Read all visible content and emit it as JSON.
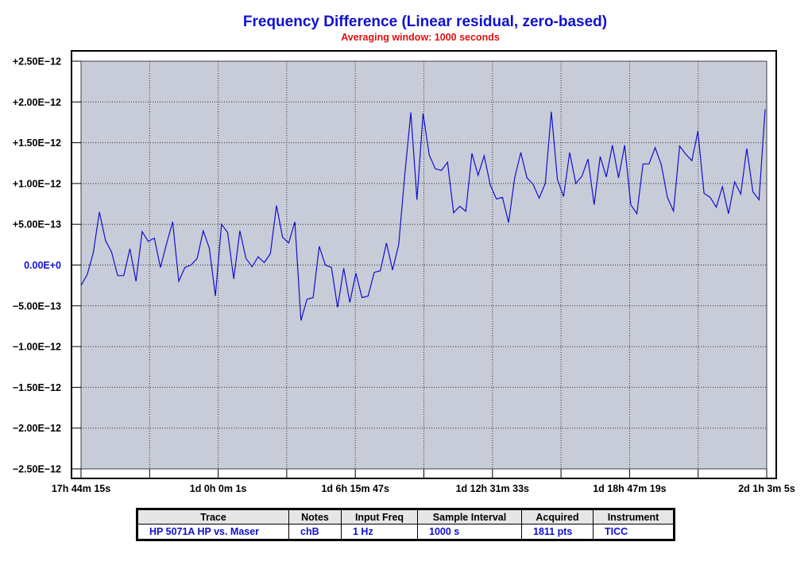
{
  "chart_data": {
    "type": "line",
    "title": "Frequency Difference (Linear residual, zero-based)",
    "subtitle": "Averaging window: 1000 seconds",
    "ylim": [
      -2.5e-12,
      2.5e-12
    ],
    "y_tick_labels": [
      "+2.50E−12",
      "+2.00E−12",
      "+1.50E−12",
      "+1.00E−12",
      "+5.00E−13",
      "0.00E+0",
      "−5.00E−13",
      "−1.00E−12",
      "−1.50E−12",
      "−2.00E−12",
      "−2.50E−12"
    ],
    "x_tick_labels": [
      "17h 44m 15s",
      "1d 0h 0m 1s",
      "1d 6h 15m 47s",
      "1d 12h 31m 33s",
      "1d 18h 47m 19s",
      "2d 1h 3m 5s"
    ],
    "grid": true,
    "colors": {
      "line": "#1010d0",
      "plot_bg": "#c8ccd8",
      "title": "#1010d0",
      "subtitle": "#e01010",
      "zero_label": "#1010d0"
    },
    "series": [
      {
        "values": [
          -0.25,
          -0.12,
          0.15,
          0.65,
          0.3,
          0.16,
          -0.13,
          -0.13,
          0.2,
          -0.2,
          0.41,
          0.29,
          0.33,
          -0.03,
          0.26,
          0.53,
          -0.2,
          -0.03,
          0.0,
          0.08,
          0.42,
          0.21,
          -0.38,
          0.5,
          0.4,
          -0.17,
          0.42,
          0.08,
          -0.02,
          0.1,
          0.03,
          0.14,
          0.73,
          0.34,
          0.27,
          0.53,
          -0.68,
          -0.42,
          -0.4,
          0.23,
          0.0,
          -0.03,
          -0.52,
          -0.04,
          -0.46,
          -0.1,
          -0.4,
          -0.38,
          -0.09,
          -0.07,
          0.27,
          -0.06,
          0.25,
          1.1,
          1.87,
          0.8,
          1.86,
          1.35,
          1.18,
          1.16,
          1.26,
          0.64,
          0.72,
          0.66,
          1.37,
          1.1,
          1.34,
          0.98,
          0.81,
          0.83,
          0.52,
          1.07,
          1.38,
          1.07,
          0.99,
          0.82,
          1.0,
          1.88,
          1.05,
          0.84,
          1.38,
          1.0,
          1.09,
          1.3,
          0.74,
          1.33,
          1.08,
          1.47,
          1.07,
          1.47,
          0.74,
          0.63,
          1.24,
          1.24,
          1.44,
          1.23,
          0.83,
          0.66,
          1.46,
          1.36,
          1.28,
          1.64,
          0.88,
          0.83,
          0.71,
          0.96,
          0.63,
          1.02,
          0.87,
          1.43,
          0.9,
          0.8,
          1.91
        ]
      }
    ]
  },
  "legend": {
    "headers": [
      "Trace",
      "Notes",
      "Input Freq",
      "Sample Interval",
      "Acquired",
      "Instrument"
    ],
    "row": [
      "HP 5071A HP vs. Maser",
      "chB",
      "1 Hz",
      "1000 s",
      "1811 pts",
      "TICC"
    ]
  }
}
